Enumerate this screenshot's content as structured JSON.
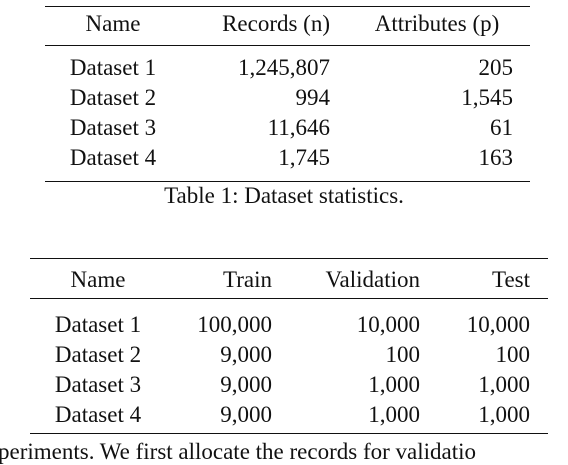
{
  "table1": {
    "header": [
      "Name",
      "Records (n)",
      "Attributes (p)"
    ],
    "rows": [
      [
        "Dataset 1",
        "1,245,807",
        "205"
      ],
      [
        "Dataset 2",
        "994",
        "1,545"
      ],
      [
        "Dataset 3",
        "11,646",
        "61"
      ],
      [
        "Dataset 4",
        "1,745",
        "163"
      ]
    ],
    "caption": "Table 1: Dataset statistics."
  },
  "table2": {
    "header": [
      "Name",
      "Train",
      "Validation",
      "Test"
    ],
    "rows": [
      [
        "Dataset 1",
        "100,000",
        "10,000",
        "10,000"
      ],
      [
        "Dataset 2",
        "9,000",
        "100",
        "100"
      ],
      [
        "Dataset 3",
        "9,000",
        "1,000",
        "1,000"
      ],
      [
        "Dataset 4",
        "9,000",
        "1,000",
        "1,000"
      ]
    ]
  },
  "body_text": "periments. We first allocate the records for validatio"
}
